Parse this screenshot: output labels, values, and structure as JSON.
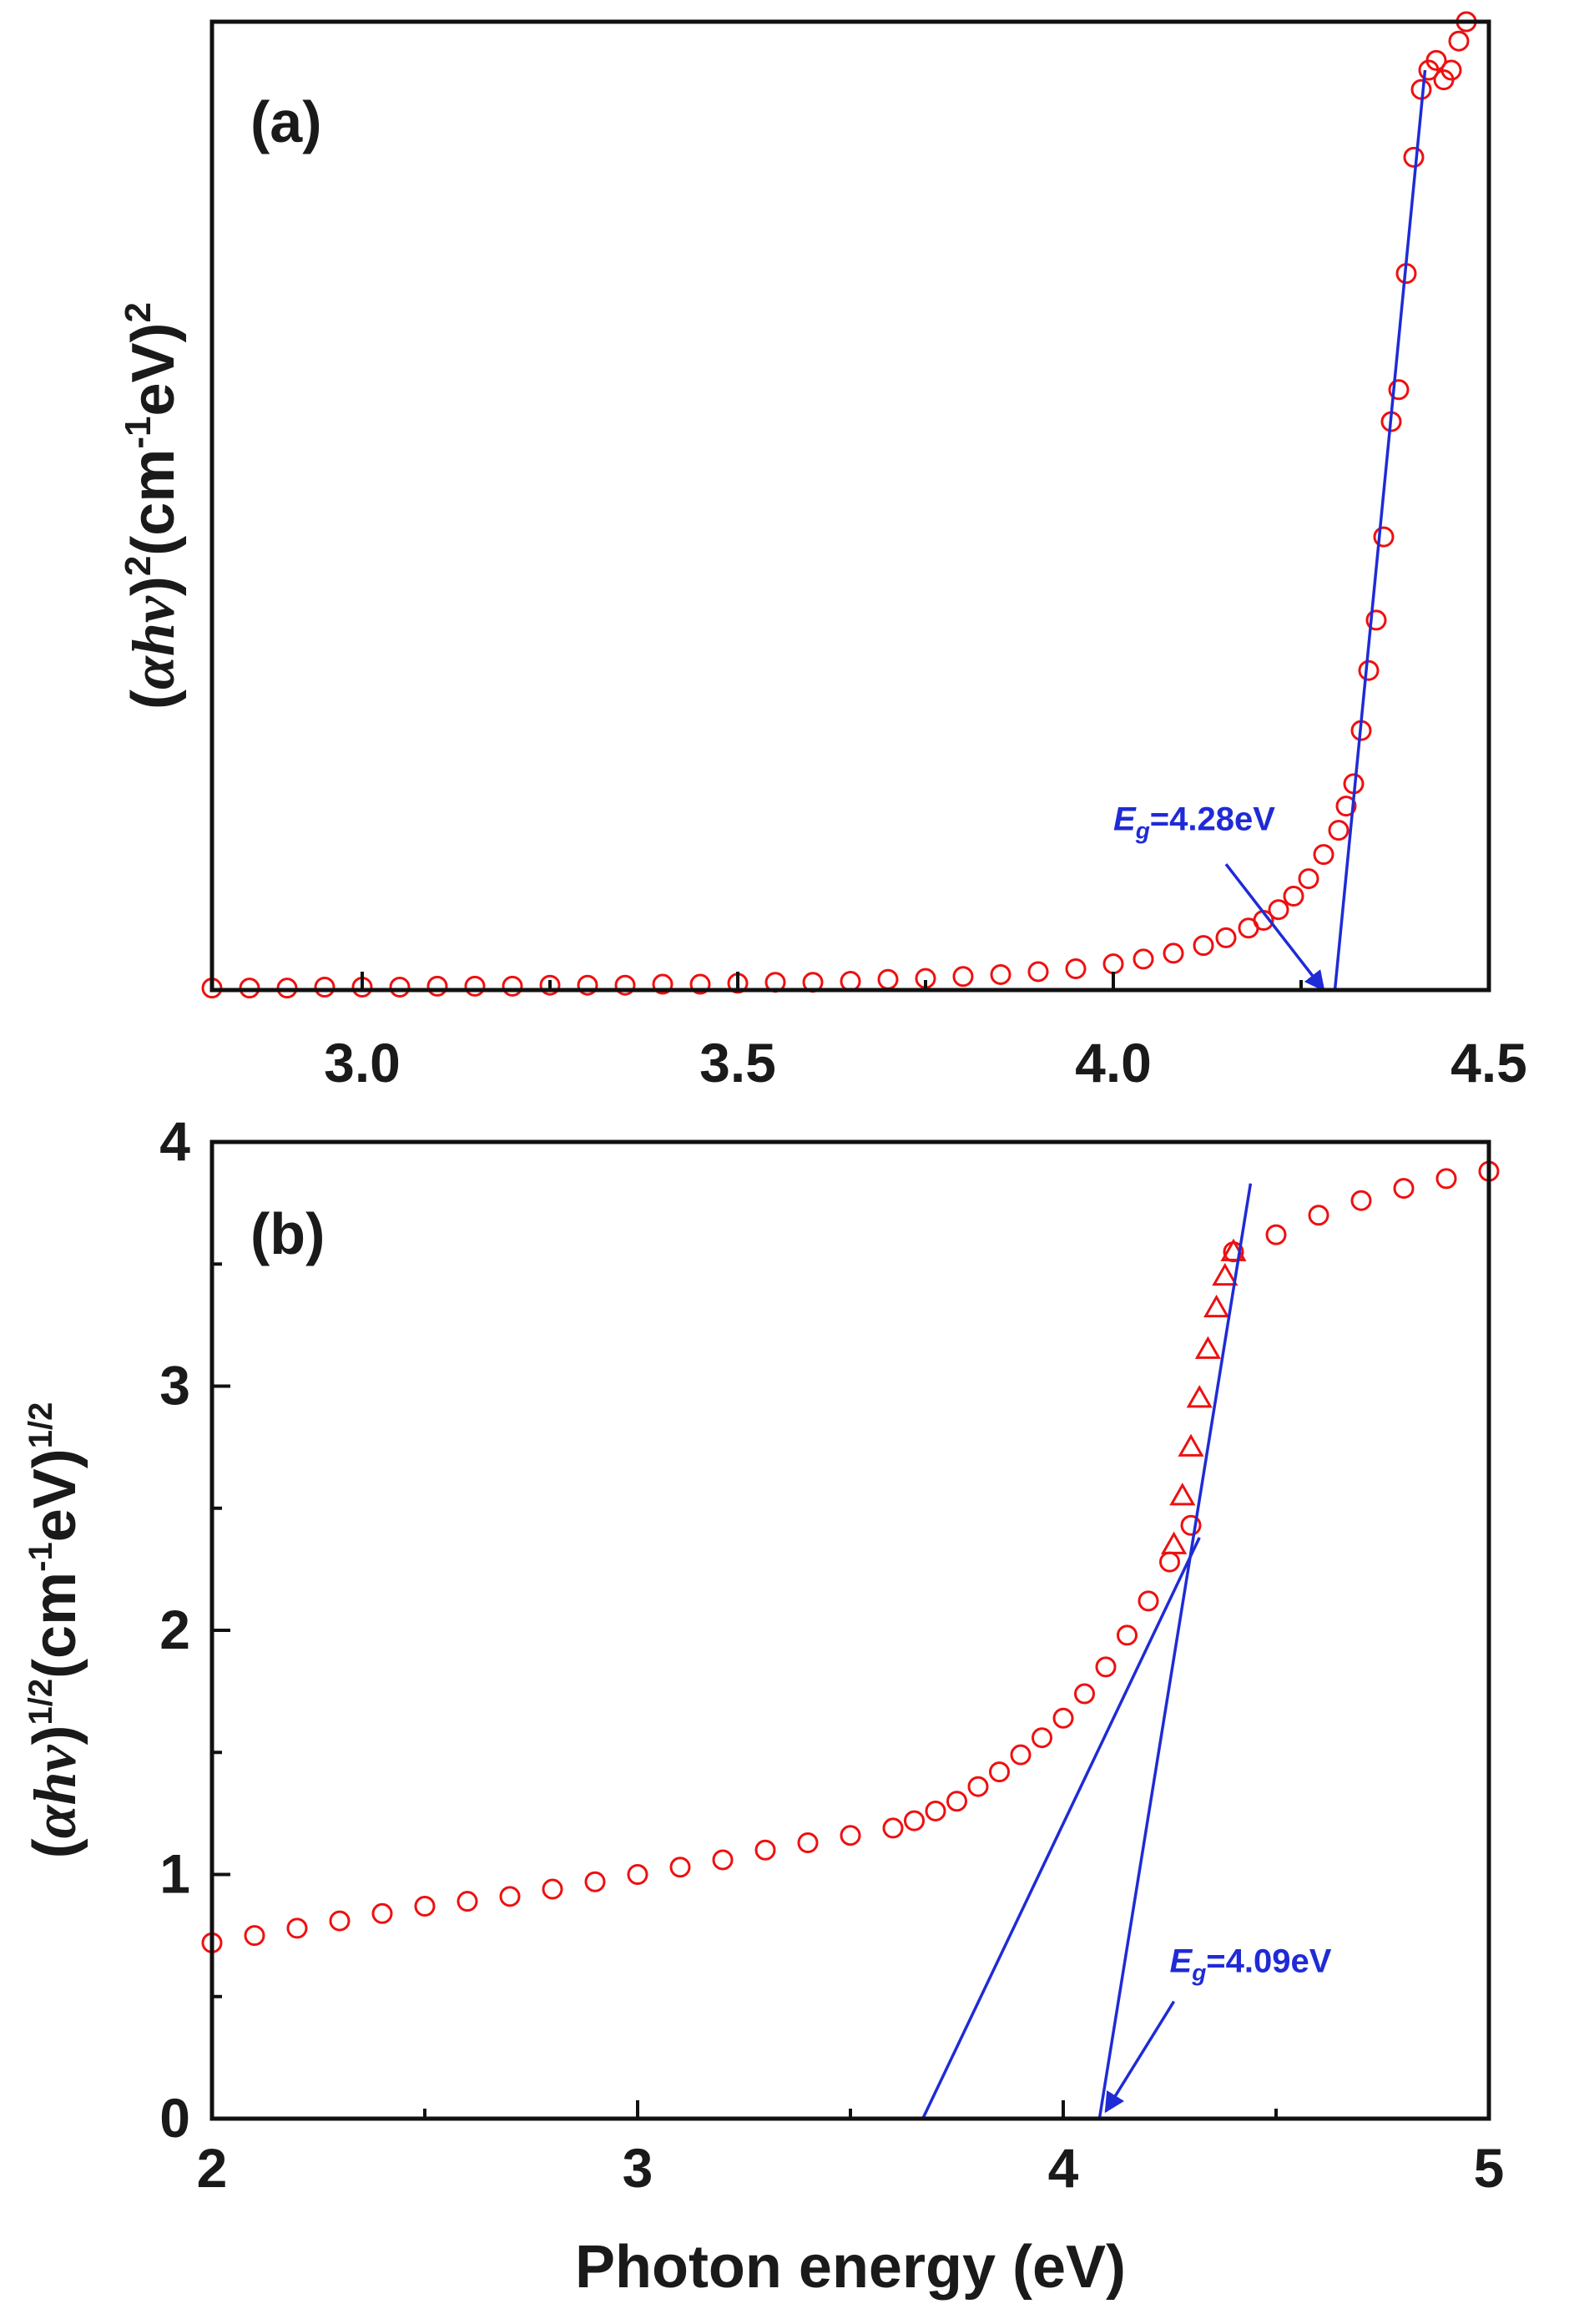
{
  "chart_data": [
    {
      "id": "a",
      "type": "scatter",
      "panel_label": "(a)",
      "title": "",
      "xlabel": "",
      "ylabel": {
        "pre": "(",
        "sym_alpha": "α",
        "sym_h": "h",
        "sym_nu": "ν",
        "close": ")",
        "sup1": "2",
        "mid": "(cm",
        "sup2": "-1",
        "unit": "eV)",
        "sup3": "2"
      },
      "xlim": [
        2.8,
        4.5
      ],
      "ylim": [
        0,
        1.0
      ],
      "xticks": [
        "3.0",
        "3.5",
        "4.0",
        "4.5"
      ],
      "xtick_values": [
        3.0,
        3.5,
        4.0,
        4.5
      ],
      "yticks": [],
      "grid": false,
      "marker": "circle",
      "marker_color": "#ee1010",
      "line_color": "#1f2bd6",
      "series": [
        {
          "name": "(αhν)²",
          "x": [
            2.8,
            2.85,
            2.9,
            2.95,
            3.0,
            3.05,
            3.1,
            3.15,
            3.2,
            3.25,
            3.3,
            3.35,
            3.4,
            3.45,
            3.5,
            3.55,
            3.6,
            3.65,
            3.7,
            3.75,
            3.8,
            3.85,
            3.9,
            3.95,
            4.0,
            4.04,
            4.08,
            4.12,
            4.15,
            4.18,
            4.2,
            4.22,
            4.24,
            4.26,
            4.28,
            4.3,
            4.31,
            4.32,
            4.33,
            4.34,
            4.35,
            4.36,
            4.37,
            4.38,
            4.39,
            4.4,
            4.41,
            4.42,
            4.43,
            4.44,
            4.45,
            4.46,
            4.47
          ],
          "y": [
            0.002,
            0.002,
            0.002,
            0.003,
            0.003,
            0.003,
            0.004,
            0.004,
            0.004,
            0.005,
            0.005,
            0.005,
            0.006,
            0.006,
            0.007,
            0.008,
            0.008,
            0.009,
            0.011,
            0.012,
            0.014,
            0.016,
            0.019,
            0.022,
            0.027,
            0.032,
            0.038,
            0.046,
            0.054,
            0.064,
            0.072,
            0.083,
            0.097,
            0.115,
            0.14,
            0.165,
            0.19,
            0.213,
            0.268,
            0.33,
            0.382,
            0.468,
            0.587,
            0.62,
            0.74,
            0.86,
            0.93,
            0.95,
            0.96,
            0.94,
            0.95,
            0.98,
            1.0
          ]
        }
      ],
      "fit_lines": [
        {
          "x": [
            4.295,
            4.415
          ],
          "y": [
            0.0,
            0.95
          ]
        }
      ],
      "annotation": {
        "E": "E",
        "sub": "g",
        "value": "=4.28eV",
        "text_x": 4.0,
        "text_y": 0.165,
        "arrow_from": [
          4.15,
          0.13
        ],
        "arrow_to": [
          4.28,
          0.0
        ]
      }
    },
    {
      "id": "b",
      "type": "scatter",
      "panel_label": "(b)",
      "title": "",
      "xlabel": "Photon energy (eV)",
      "ylabel": {
        "pre": "(",
        "sym_alpha": "α",
        "sym_h": "h",
        "sym_nu": "ν",
        "close": ")",
        "sup1": "1/2",
        "mid": "(cm",
        "sup2": "-1",
        "unit": "eV)",
        "sup3": "1/2"
      },
      "xlim": [
        2,
        5
      ],
      "ylim": [
        0,
        4
      ],
      "xticks": [
        "2",
        "3",
        "4",
        "5"
      ],
      "xtick_values": [
        2,
        3,
        4,
        5
      ],
      "yticks": [
        "0",
        "1",
        "2",
        "3",
        "4"
      ],
      "ytick_values": [
        0,
        1,
        2,
        3,
        4
      ],
      "grid": false,
      "marker_color": "#ee1010",
      "line_color": "#1f2bd6",
      "series": [
        {
          "name": "(αhν)^1/2 circles",
          "marker": "circle",
          "x": [
            2.0,
            2.1,
            2.2,
            2.3,
            2.4,
            2.5,
            2.6,
            2.7,
            2.8,
            2.9,
            3.0,
            3.1,
            3.2,
            3.3,
            3.4,
            3.5,
            3.6,
            3.65,
            3.7,
            3.75,
            3.8,
            3.85,
            3.9,
            3.95,
            4.0,
            4.05,
            4.1,
            4.15,
            4.2,
            4.25,
            4.3,
            4.4,
            4.5,
            4.6,
            4.7,
            4.8,
            4.9,
            5.0
          ],
          "y": [
            0.72,
            0.75,
            0.78,
            0.81,
            0.84,
            0.87,
            0.89,
            0.91,
            0.94,
            0.97,
            1.0,
            1.03,
            1.06,
            1.1,
            1.13,
            1.16,
            1.19,
            1.22,
            1.26,
            1.3,
            1.36,
            1.42,
            1.49,
            1.56,
            1.64,
            1.74,
            1.85,
            1.98,
            2.12,
            2.28,
            2.43,
            3.55,
            3.62,
            3.7,
            3.76,
            3.81,
            3.85,
            3.88
          ]
        },
        {
          "name": "(αhν)^1/2 triangles",
          "marker": "triangle",
          "x": [
            4.26,
            4.28,
            4.3,
            4.32,
            4.34,
            4.36,
            4.38,
            4.4
          ],
          "y": [
            2.35,
            2.55,
            2.75,
            2.95,
            3.15,
            3.32,
            3.45,
            3.55
          ]
        }
      ],
      "fit_lines": [
        {
          "x": [
            3.67,
            4.32
          ],
          "y": [
            0.0,
            2.38
          ]
        },
        {
          "x": [
            4.085,
            4.44
          ],
          "y": [
            0.0,
            3.83
          ]
        }
      ],
      "annotation": {
        "E": "E",
        "sub": "g",
        "value": "=4.09eV",
        "text_x": 4.25,
        "text_y": 0.6,
        "arrow_from": [
          4.26,
          0.48
        ],
        "arrow_to": [
          4.1,
          0.03
        ]
      }
    }
  ]
}
